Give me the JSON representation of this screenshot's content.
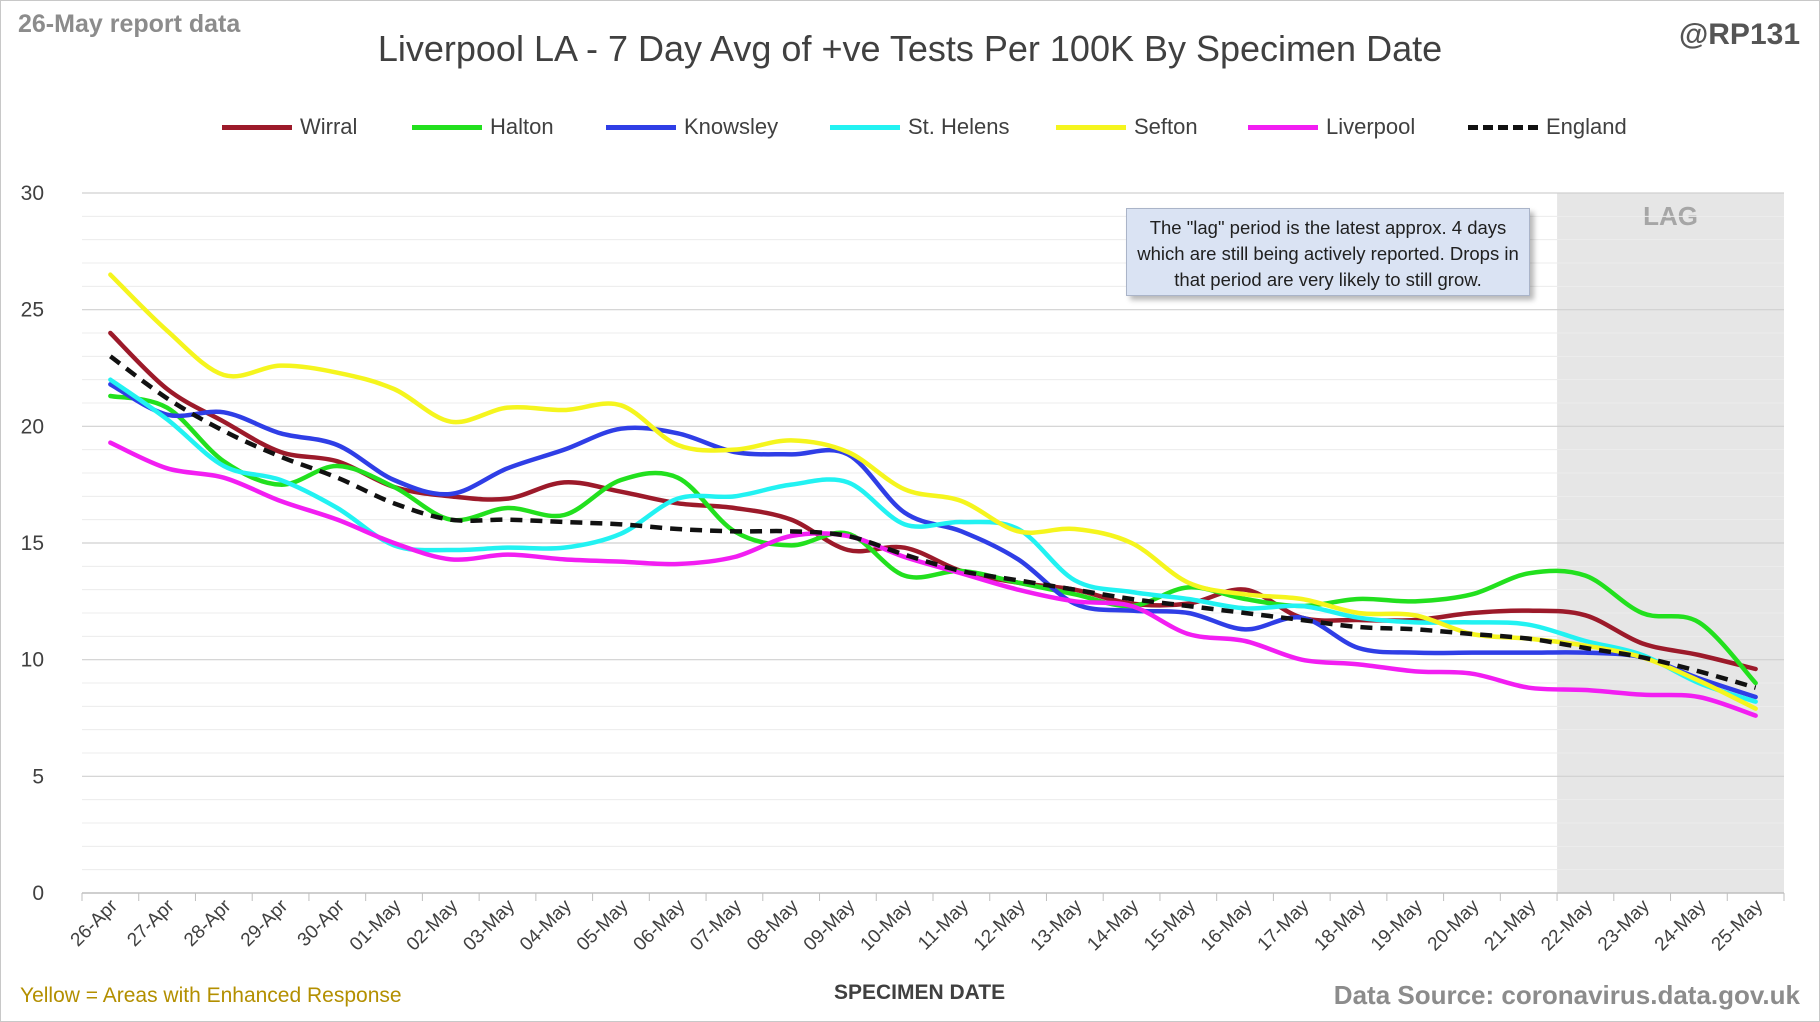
{
  "report_date": "26-May report data",
  "handle": "@RP131",
  "footer_note": "Yellow = Areas with Enhanced Response",
  "source": "Data Source: coronavirus.data.gov.uk",
  "note": "The \"lag\" period is the latest approx. 4 days which are still being actively reported. Drops in that period are very likely to still grow.",
  "lag_label": "LAG",
  "chart_data": {
    "type": "line",
    "title": "Liverpool LA - 7 Day Avg of +ve Tests Per 100K By Specimen Date",
    "xlabel": "SPECIMEN DATE",
    "ylabel": "",
    "ylim": [
      0,
      30
    ],
    "yticks": [
      0,
      5,
      10,
      15,
      20,
      25,
      30
    ],
    "grid": true,
    "legend": "top",
    "lag_start": "21-May",
    "x": [
      "26-Apr",
      "27-Apr",
      "28-Apr",
      "29-Apr",
      "30-Apr",
      "01-May",
      "02-May",
      "03-May",
      "04-May",
      "05-May",
      "06-May",
      "07-May",
      "08-May",
      "09-May",
      "10-May",
      "11-May",
      "12-May",
      "13-May",
      "14-May",
      "15-May",
      "16-May",
      "17-May",
      "18-May",
      "19-May",
      "20-May",
      "21-May",
      "22-May",
      "23-May",
      "24-May",
      "25-May"
    ],
    "series": [
      {
        "name": "Wirral",
        "color": "#9c1a2a",
        "dashed": false,
        "values": [
          24.0,
          21.6,
          20.2,
          18.9,
          18.5,
          17.4,
          17.0,
          16.9,
          17.6,
          17.2,
          16.7,
          16.5,
          16.0,
          14.7,
          14.8,
          13.8,
          13.3,
          13.0,
          12.4,
          12.4,
          13.0,
          11.8,
          11.7,
          11.7,
          12.0,
          12.1,
          11.9,
          10.7,
          10.2,
          9.6
        ]
      },
      {
        "name": "Halton",
        "color": "#22e01e",
        "dashed": false,
        "values": [
          21.3,
          20.8,
          18.5,
          17.5,
          18.3,
          17.4,
          16.0,
          16.5,
          16.2,
          17.7,
          17.8,
          15.5,
          14.9,
          15.4,
          13.6,
          13.8,
          13.3,
          12.8,
          12.3,
          13.1,
          12.6,
          12.3,
          12.6,
          12.5,
          12.8,
          13.7,
          13.6,
          12.0,
          11.6,
          9.0
        ]
      },
      {
        "name": "Knowsley",
        "color": "#2f3ee6",
        "dashed": false,
        "values": [
          21.8,
          20.5,
          20.6,
          19.7,
          19.2,
          17.7,
          17.1,
          18.2,
          19.0,
          19.9,
          19.7,
          18.9,
          18.8,
          18.8,
          16.3,
          15.5,
          14.3,
          12.4,
          12.1,
          12.0,
          11.3,
          11.8,
          10.5,
          10.3,
          10.3,
          10.3,
          10.3,
          10.1,
          9.2,
          8.4
        ]
      },
      {
        "name": "St. Helens",
        "color": "#22f2f2",
        "dashed": false,
        "values": [
          22.0,
          20.3,
          18.3,
          17.7,
          16.5,
          14.9,
          14.7,
          14.8,
          14.8,
          15.4,
          16.9,
          17.0,
          17.5,
          17.6,
          15.8,
          15.9,
          15.6,
          13.4,
          12.9,
          12.6,
          12.2,
          12.3,
          11.8,
          11.6,
          11.6,
          11.5,
          10.8,
          10.2,
          9.0,
          8.2
        ]
      },
      {
        "name": "Sefton",
        "color": "#f5f51e",
        "dashed": false,
        "values": [
          26.5,
          24.1,
          22.2,
          22.6,
          22.3,
          21.6,
          20.2,
          20.8,
          20.7,
          20.9,
          19.2,
          19.0,
          19.4,
          18.9,
          17.3,
          16.8,
          15.5,
          15.6,
          15.0,
          13.3,
          12.8,
          12.6,
          12.0,
          11.9,
          11.1,
          10.9,
          10.6,
          10.1,
          9.1,
          7.9
        ]
      },
      {
        "name": "Liverpool",
        "color": "#f21ef2",
        "dashed": false,
        "values": [
          19.3,
          18.2,
          17.8,
          16.8,
          16.0,
          15.0,
          14.3,
          14.5,
          14.3,
          14.2,
          14.1,
          14.4,
          15.3,
          15.3,
          14.4,
          13.7,
          13.0,
          12.5,
          12.3,
          11.1,
          10.8,
          10.0,
          9.8,
          9.5,
          9.4,
          8.8,
          8.7,
          8.5,
          8.4,
          7.6
        ]
      },
      {
        "name": "England",
        "color": "#111111",
        "dashed": true,
        "values": [
          23.0,
          21.2,
          19.8,
          18.7,
          17.8,
          16.7,
          16.0,
          16.0,
          15.9,
          15.8,
          15.6,
          15.5,
          15.5,
          15.3,
          14.5,
          13.8,
          13.4,
          13.0,
          12.6,
          12.3,
          12.0,
          11.7,
          11.4,
          11.3,
          11.1,
          10.9,
          10.5,
          10.1,
          9.5,
          8.8
        ]
      }
    ]
  }
}
